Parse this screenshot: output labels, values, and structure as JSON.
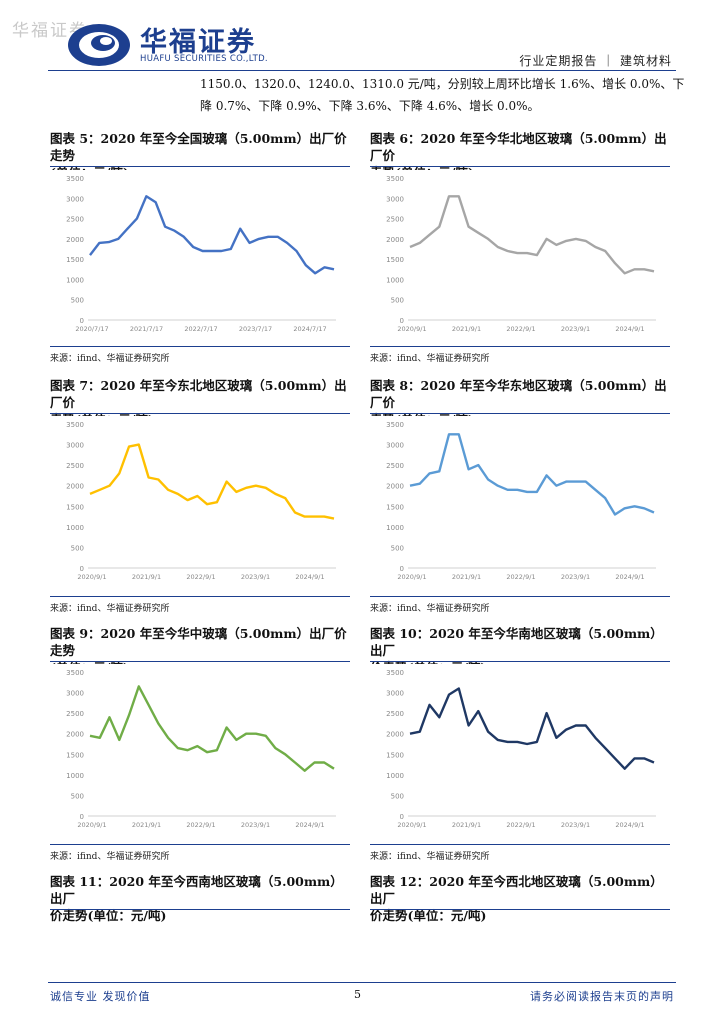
{
  "header": {
    "watermark": "华福证券",
    "logo_cn": "华福证券",
    "logo_en": "HUAFU SECURITIES CO.,LTD.",
    "report_type": "行业定期报告 ｜ 建筑材料",
    "brand_color": "#1d3f8f"
  },
  "body": {
    "line1": "1150.0、1320.0、1240.0、1310.0 元/吨，分别较上周环比增长 1.6%、增长 0.0%、下",
    "line2": "降 0.7%、下降 0.9%、下降 3.6%、下降 4.6%、增长 0.0%。"
  },
  "figures": [
    {
      "title_l1": "图表 5：2020 年至今全国玻璃（5.00mm）出厂价走势",
      "title_l2": "(单位：元/吨)",
      "source": "来源：ifind、华福证券研究所"
    },
    {
      "title_l1": "图表 6：2020 年至今华北地区玻璃（5.00mm）出厂价",
      "title_l2": "走势(单位：元/吨)",
      "source": "来源：ifind、华福证券研究所"
    },
    {
      "title_l1": "图表 7：2020 年至今东北地区玻璃（5.00mm）出厂价",
      "title_l2": "走势(单位：元/吨)",
      "source": "来源：ifind、华福证券研究所"
    },
    {
      "title_l1": "图表 8：2020 年至今华东地区玻璃（5.00mm）出厂价",
      "title_l2": "走势(单位：元/吨)",
      "source": "来源：ifind、华福证券研究所"
    },
    {
      "title_l1": "图表 9：2020 年至今华中玻璃（5.00mm）出厂价走势",
      "title_l2": "(单位：元/吨)",
      "source": "来源：ifind、华福证券研究所"
    },
    {
      "title_l1": "图表 10：2020 年至今华南地区玻璃（5.00mm）出厂",
      "title_l2": "价走势(单位：元/吨)",
      "source": "来源：ifind、华福证券研究所"
    },
    {
      "title_l1": "图表 11：2020 年至今西南地区玻璃（5.00mm）出厂",
      "title_l2": "价走势(单位：元/吨)"
    },
    {
      "title_l1": "图表 12：2020 年至今西北地区玻璃（5.00mm）出厂",
      "title_l2": "价走势(单位：元/吨)"
    }
  ],
  "chart_data": [
    {
      "type": "line",
      "color": "#4472c4",
      "ylim": [
        0,
        3500
      ],
      "yticks": [
        "0",
        "500",
        "1000",
        "1500",
        "2000",
        "2500",
        "3000",
        "3500"
      ],
      "xticks": [
        "2020/7/17",
        "2021/7/17",
        "2022/7/17",
        "2023/7/17",
        "2024/7/17"
      ],
      "x": [
        "2020/7",
        "2020/9",
        "2020/11",
        "2021/1",
        "2021/3",
        "2021/5",
        "2021/7",
        "2021/9",
        "2021/11",
        "2022/1",
        "2022/3",
        "2022/5",
        "2022/7",
        "2022/9",
        "2022/11",
        "2023/1",
        "2023/3",
        "2023/5",
        "2023/7",
        "2023/9",
        "2023/11",
        "2024/1",
        "2024/3",
        "2024/5",
        "2024/7",
        "2024/9",
        "2024/11"
      ],
      "values": [
        1600,
        1900,
        1920,
        2000,
        2250,
        2500,
        3050,
        2900,
        2300,
        2200,
        2050,
        1800,
        1700,
        1700,
        1700,
        1750,
        2250,
        1900,
        2000,
        2050,
        2050,
        1900,
        1700,
        1350,
        1150,
        1300,
        1250
      ]
    },
    {
      "type": "line",
      "color": "#a6a6a6",
      "ylim": [
        0,
        3500
      ],
      "yticks": [
        "0",
        "500",
        "1000",
        "1500",
        "2000",
        "2500",
        "3000",
        "3500"
      ],
      "xticks": [
        "2020/9/1",
        "2021/9/1",
        "2022/9/1",
        "2023/9/1",
        "2024/9/1"
      ],
      "x": [
        "2020/9",
        "2020/11",
        "2021/1",
        "2021/3",
        "2021/5",
        "2021/7",
        "2021/9",
        "2021/11",
        "2022/1",
        "2022/3",
        "2022/5",
        "2022/7",
        "2022/9",
        "2022/11",
        "2023/1",
        "2023/3",
        "2023/5",
        "2023/7",
        "2023/9",
        "2023/11",
        "2024/1",
        "2024/3",
        "2024/5",
        "2024/7",
        "2024/9",
        "2024/11"
      ],
      "values": [
        1800,
        1900,
        2100,
        2300,
        3050,
        3050,
        2300,
        2150,
        2000,
        1800,
        1700,
        1650,
        1650,
        1600,
        2000,
        1850,
        1950,
        2000,
        1950,
        1800,
        1700,
        1400,
        1150,
        1250,
        1250,
        1200
      ]
    },
    {
      "type": "line",
      "color": "#ffc000",
      "ylim": [
        0,
        3500
      ],
      "yticks": [
        "0",
        "500",
        "1000",
        "1500",
        "2000",
        "2500",
        "3000",
        "3500"
      ],
      "xticks": [
        "2020/9/1",
        "2021/9/1",
        "2022/9/1",
        "2023/9/1",
        "2024/9/1"
      ],
      "x": [
        "2020/9",
        "2020/11",
        "2021/1",
        "2021/3",
        "2021/5",
        "2021/7",
        "2021/9",
        "2021/11",
        "2022/1",
        "2022/3",
        "2022/5",
        "2022/7",
        "2022/9",
        "2022/11",
        "2023/1",
        "2023/3",
        "2023/5",
        "2023/7",
        "2023/9",
        "2023/11",
        "2024/1",
        "2024/3",
        "2024/5",
        "2024/7",
        "2024/9",
        "2024/11"
      ],
      "values": [
        1800,
        1900,
        2000,
        2300,
        2950,
        3000,
        2200,
        2150,
        1900,
        1800,
        1650,
        1750,
        1550,
        1600,
        2100,
        1850,
        1950,
        2000,
        1950,
        1800,
        1700,
        1350,
        1250,
        1250,
        1250,
        1200
      ]
    },
    {
      "type": "line",
      "color": "#5b9bd5",
      "ylim": [
        0,
        3500
      ],
      "yticks": [
        "0",
        "500",
        "1000",
        "1500",
        "2000",
        "2500",
        "3000",
        "3500"
      ],
      "xticks": [
        "2020/9/1",
        "2021/9/1",
        "2022/9/1",
        "2023/9/1",
        "2024/9/1"
      ],
      "x": [
        "2020/9",
        "2020/11",
        "2021/1",
        "2021/3",
        "2021/5",
        "2021/7",
        "2021/9",
        "2021/11",
        "2022/1",
        "2022/3",
        "2022/5",
        "2022/7",
        "2022/9",
        "2022/11",
        "2023/1",
        "2023/3",
        "2023/5",
        "2023/7",
        "2023/9",
        "2023/11",
        "2024/1",
        "2024/3",
        "2024/5",
        "2024/7",
        "2024/9",
        "2024/11"
      ],
      "values": [
        2000,
        2050,
        2300,
        2350,
        3250,
        3250,
        2400,
        2500,
        2150,
        2000,
        1900,
        1900,
        1850,
        1850,
        2250,
        2000,
        2100,
        2100,
        2100,
        1900,
        1700,
        1300,
        1450,
        1500,
        1450,
        1350
      ]
    },
    {
      "type": "line",
      "color": "#70ad47",
      "ylim": [
        0,
        3500
      ],
      "yticks": [
        "0",
        "500",
        "1000",
        "1500",
        "2000",
        "2500",
        "3000",
        "3500"
      ],
      "xticks": [
        "2020/9/1",
        "2021/9/1",
        "2022/9/1",
        "2023/9/1",
        "2024/9/1"
      ],
      "x": [
        "2020/9",
        "2020/11",
        "2021/1",
        "2021/3",
        "2021/5",
        "2021/7",
        "2021/9",
        "2021/11",
        "2022/1",
        "2022/3",
        "2022/5",
        "2022/7",
        "2022/9",
        "2022/11",
        "2023/1",
        "2023/3",
        "2023/5",
        "2023/7",
        "2023/9",
        "2023/11",
        "2024/1",
        "2024/3",
        "2024/5",
        "2024/7",
        "2024/9",
        "2024/11"
      ],
      "values": [
        1950,
        1900,
        2400,
        1850,
        2450,
        3150,
        2700,
        2250,
        1900,
        1650,
        1600,
        1700,
        1550,
        1600,
        2150,
        1850,
        2000,
        2000,
        1950,
        1650,
        1500,
        1300,
        1100,
        1300,
        1300,
        1150
      ]
    },
    {
      "type": "line",
      "color": "#1f3864",
      "ylim": [
        0,
        3500
      ],
      "yticks": [
        "0",
        "500",
        "1000",
        "1500",
        "2000",
        "2500",
        "3000",
        "3500"
      ],
      "xticks": [
        "2020/9/1",
        "2021/9/1",
        "2022/9/1",
        "2023/9/1",
        "2024/9/1"
      ],
      "x": [
        "2020/9",
        "2020/11",
        "2021/1",
        "2021/3",
        "2021/5",
        "2021/7",
        "2021/9",
        "2021/11",
        "2022/1",
        "2022/3",
        "2022/5",
        "2022/7",
        "2022/9",
        "2022/11",
        "2023/1",
        "2023/3",
        "2023/5",
        "2023/7",
        "2023/9",
        "2023/11",
        "2024/1",
        "2024/3",
        "2024/5",
        "2024/7",
        "2024/9",
        "2024/11"
      ],
      "values": [
        2000,
        2050,
        2700,
        2400,
        2950,
        3100,
        2200,
        2550,
        2050,
        1850,
        1800,
        1800,
        1750,
        1800,
        2500,
        1900,
        2100,
        2200,
        2200,
        1900,
        1650,
        1400,
        1150,
        1400,
        1400,
        1300
      ]
    }
  ],
  "footer": {
    "left": "诚信专业  发现价值",
    "page": "5",
    "right": "请务必阅读报告末页的声明"
  }
}
